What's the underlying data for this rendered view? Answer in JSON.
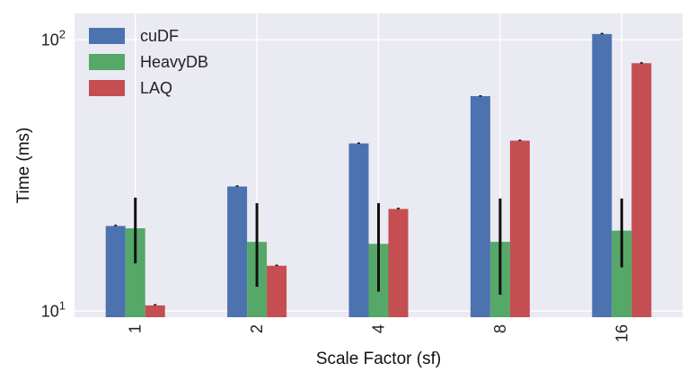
{
  "chart_data": {
    "type": "bar",
    "y_scale": "log",
    "xlabel": "Scale Factor (sf)",
    "ylabel": "Time (ms)",
    "ylim": [
      9.5,
      125
    ],
    "y_ticks": [
      {
        "value": 10,
        "base": "10",
        "exp": "1"
      },
      {
        "value": 100,
        "base": "10",
        "exp": "2"
      }
    ],
    "categories": [
      "1",
      "2",
      "4",
      "8",
      "16"
    ],
    "series": [
      {
        "name": "cuDF",
        "color": "#4c72b0",
        "values": [
          20.6,
          28.8,
          41.5,
          62,
          105
        ],
        "err_low": [
          20.5,
          28.7,
          41.4,
          61.9,
          104.6
        ],
        "err_high": [
          20.7,
          28.9,
          41.6,
          62.1,
          105.4
        ]
      },
      {
        "name": "HeavyDB",
        "color": "#55a868",
        "values": [
          20.2,
          18,
          17.7,
          18,
          19.8
        ],
        "err_low": [
          15,
          12.3,
          11.8,
          11.5,
          14.5
        ],
        "err_high": [
          26.2,
          25,
          25,
          26,
          26
        ]
      },
      {
        "name": "LAQ",
        "color": "#c44e52",
        "values": [
          10.5,
          14.7,
          23.8,
          42.5,
          82
        ],
        "err_low": [
          10.45,
          14.65,
          23.7,
          42.4,
          81.8
        ],
        "err_high": [
          10.55,
          14.75,
          23.9,
          42.6,
          82.2
        ]
      }
    ],
    "legend_position": "top-left",
    "grid": true,
    "background": "#eaeaf2"
  }
}
